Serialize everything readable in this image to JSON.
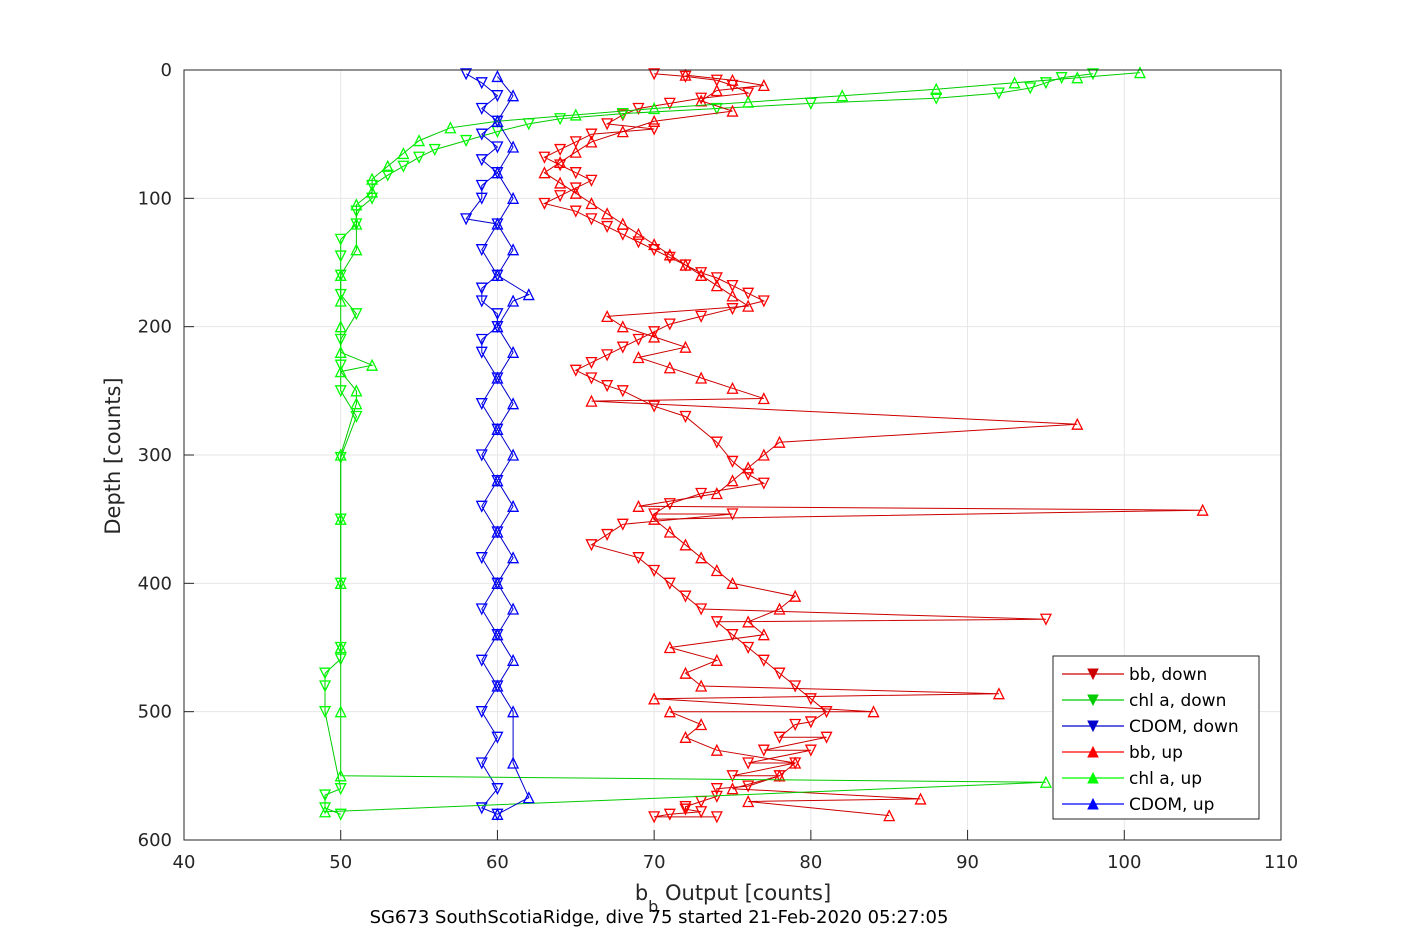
{
  "chart_data": {
    "type": "scatter",
    "xlabel_main": "b",
    "xlabel_sub": "b",
    "xlabel_rest": " Output [counts]",
    "ylabel": "Depth [counts]",
    "caption": "SG673 SouthScotiaRidge, dive 75 started 21-Feb-2020 05:27:05",
    "xlim": [
      40,
      110
    ],
    "ylim": [
      0,
      600
    ],
    "y_reversed": true,
    "grid": true,
    "legend_position": "bottom-right",
    "xticks": [
      40,
      50,
      60,
      70,
      80,
      90,
      100,
      110
    ],
    "yticks": [
      0,
      100,
      200,
      300,
      400,
      500,
      600
    ],
    "colors": {
      "bb": "#ff0000",
      "chl": "#00ff00",
      "cdom": "#0000ff",
      "bb_line": "#cc0000",
      "chl_line": "#00cc00",
      "cdom_line": "#0000cc"
    },
    "legend": [
      "bb, down",
      "chl a, down",
      "CDOM, down",
      "bb, up",
      "chl a, up",
      "CDOM, up"
    ],
    "series": [
      {
        "name": "bb, down",
        "color": "#ff0000",
        "marker": "triangle-down",
        "x": [
          70,
          72,
          74,
          75,
          76,
          73,
          71,
          69,
          68,
          67,
          70,
          66,
          65,
          64,
          63,
          64,
          65,
          66,
          65,
          64,
          63,
          65,
          66,
          67,
          68,
          69,
          70,
          71,
          72,
          73,
          74,
          75,
          76,
          77,
          75,
          73,
          71,
          70,
          69,
          68,
          67,
          66,
          65,
          66,
          67,
          68,
          70,
          72,
          74,
          75,
          76,
          77,
          73,
          71,
          70,
          68,
          67,
          66,
          69,
          70,
          71,
          72,
          73,
          74,
          75,
          76,
          77,
          78,
          79,
          80,
          81,
          79,
          78,
          77,
          76,
          75,
          74,
          73,
          72,
          71,
          70,
          72,
          74,
          76,
          78,
          79,
          80,
          81,
          75,
          74,
          73,
          95,
          80
        ],
        "y": [
          3,
          5,
          8,
          12,
          18,
          22,
          26,
          30,
          35,
          42,
          46,
          50,
          56,
          62,
          68,
          74,
          80,
          86,
          92,
          98,
          104,
          110,
          116,
          122,
          128,
          134,
          140,
          146,
          152,
          158,
          162,
          168,
          174,
          180,
          186,
          192,
          198,
          204,
          210,
          216,
          222,
          228,
          234,
          240,
          246,
          250,
          262,
          270,
          290,
          305,
          315,
          322,
          330,
          338,
          346,
          354,
          362,
          370,
          380,
          390,
          400,
          410,
          420,
          430,
          440,
          450,
          460,
          470,
          480,
          490,
          500,
          510,
          520,
          530,
          540,
          550,
          560,
          570,
          576,
          580,
          582,
          574,
          566,
          558,
          550,
          540,
          530,
          520,
          346,
          582,
          578,
          428,
          508
        ]
      },
      {
        "name": "chl a, down",
        "color": "#00ff00",
        "marker": "triangle-down",
        "x": [
          98,
          96,
          95,
          94,
          92,
          88,
          80,
          74,
          68,
          64,
          62,
          60,
          58,
          56,
          55,
          54,
          53,
          52,
          52,
          51,
          51,
          50,
          50,
          50,
          50,
          51,
          50,
          50,
          50,
          51,
          50,
          50,
          50,
          50,
          50,
          49,
          49,
          49,
          49,
          49,
          50,
          50
        ],
        "y": [
          3,
          6,
          10,
          14,
          18,
          22,
          26,
          30,
          34,
          38,
          42,
          48,
          55,
          62,
          68,
          75,
          82,
          90,
          100,
          110,
          120,
          132,
          145,
          160,
          175,
          190,
          210,
          230,
          250,
          270,
          302,
          350,
          400,
          450,
          459,
          470,
          480,
          500,
          565,
          575,
          580,
          560
        ]
      },
      {
        "name": "CDOM, down",
        "color": "#0000ff",
        "marker": "triangle-down",
        "x": [
          58,
          59,
          60,
          59,
          60,
          59,
          60,
          59,
          60,
          59,
          58,
          59,
          60,
          59,
          60,
          59,
          60,
          59,
          60,
          59,
          60,
          59,
          60,
          59,
          60,
          59,
          60,
          59,
          60,
          59,
          60,
          59,
          60,
          59,
          60,
          59,
          60,
          59,
          60,
          59
        ],
        "y": [
          3,
          10,
          20,
          30,
          40,
          50,
          60,
          70,
          80,
          90,
          116,
          100,
          120,
          140,
          160,
          180,
          200,
          220,
          240,
          260,
          280,
          300,
          320,
          340,
          360,
          380,
          400,
          420,
          440,
          460,
          480,
          500,
          520,
          540,
          560,
          575,
          580,
          170,
          190,
          210
        ]
      },
      {
        "name": "bb, up",
        "color": "#ff0000",
        "marker": "triangle-up",
        "x": [
          72,
          75,
          77,
          74,
          73,
          75,
          70,
          68,
          66,
          65,
          64,
          63,
          64,
          65,
          66,
          67,
          68,
          69,
          70,
          71,
          72,
          73,
          74,
          75,
          76,
          67,
          68,
          70,
          72,
          69,
          71,
          73,
          75,
          77,
          66,
          97,
          105,
          92,
          84,
          87,
          85,
          76,
          75,
          78,
          79,
          74,
          72,
          73,
          71,
          70,
          73,
          72,
          74,
          71,
          77,
          76,
          78,
          79,
          75,
          74,
          73,
          72,
          71,
          70,
          69,
          74,
          75,
          76,
          77,
          78
        ],
        "y": [
          4,
          8,
          12,
          16,
          24,
          32,
          40,
          48,
          56,
          64,
          72,
          80,
          88,
          96,
          104,
          112,
          120,
          128,
          136,
          144,
          152,
          160,
          168,
          176,
          184,
          192,
          200,
          208,
          216,
          224,
          232,
          240,
          248,
          256,
          258,
          276,
          343,
          486,
          500,
          568,
          581,
          570,
          560,
          550,
          540,
          530,
          520,
          510,
          500,
          490,
          480,
          470,
          460,
          450,
          440,
          430,
          420,
          410,
          400,
          390,
          380,
          370,
          360,
          350,
          340,
          330,
          320,
          310,
          300,
          290
        ]
      },
      {
        "name": "chl a, up",
        "color": "#00ff00",
        "marker": "triangle-up",
        "x": [
          101,
          97,
          93,
          88,
          82,
          76,
          70,
          65,
          60,
          57,
          55,
          54,
          53,
          52,
          52,
          51,
          51,
          51,
          50,
          50,
          50,
          50,
          50,
          51,
          52,
          51,
          50,
          50,
          50,
          50,
          50,
          50,
          95,
          49
        ],
        "y": [
          2,
          6,
          10,
          15,
          20,
          25,
          30,
          35,
          40,
          45,
          55,
          65,
          75,
          85,
          95,
          105,
          120,
          140,
          160,
          180,
          200,
          220,
          235,
          260,
          230,
          250,
          300,
          350,
          400,
          450,
          500,
          550,
          555,
          578
        ]
      },
      {
        "name": "CDOM, up",
        "color": "#0000ff",
        "marker": "triangle-up",
        "x": [
          60,
          61,
          60,
          61,
          60,
          61,
          60,
          61,
          60,
          61,
          60,
          61,
          60,
          61,
          60,
          61,
          60,
          61,
          60,
          61,
          60,
          61,
          60,
          61,
          60,
          62,
          61,
          62,
          61,
          60
        ],
        "y": [
          5,
          20,
          40,
          60,
          80,
          100,
          120,
          140,
          160,
          180,
          200,
          220,
          240,
          260,
          280,
          300,
          320,
          340,
          360,
          380,
          400,
          420,
          440,
          460,
          480,
          175,
          500,
          567,
          540,
          580
        ]
      }
    ]
  }
}
